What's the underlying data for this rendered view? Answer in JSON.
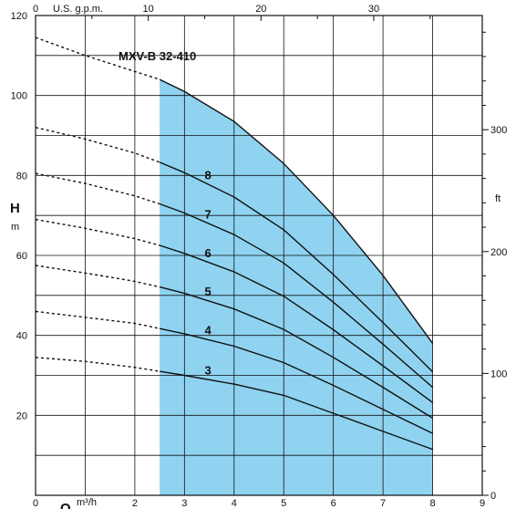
{
  "chart_data": {
    "type": "line",
    "title": "MXV-B 32-410",
    "x_primary": {
      "unit_label": "Q",
      "unit": "m³/h",
      "ticks": [
        "0",
        "1",
        "2",
        "3",
        "4",
        "5",
        "6",
        "7",
        "8",
        "9"
      ],
      "range": [
        0,
        9
      ]
    },
    "x_secondary": {
      "unit_label": "U.S. g.p.m.",
      "ticks": [
        "0",
        "10",
        "20",
        "30"
      ]
    },
    "y_primary": {
      "unit_label": "H",
      "unit": "m",
      "ticks": [
        "0",
        "20",
        "40",
        "60",
        "80",
        "100",
        "120"
      ],
      "range": [
        0,
        120
      ]
    },
    "y_secondary": {
      "unit_label": "ft",
      "ticks": [
        "0",
        "100",
        "200",
        "300"
      ]
    },
    "grid": true,
    "operating_range_x": [
      2.5,
      8
    ],
    "operating_area_color": "#8fd3f1",
    "series": [
      {
        "name": "3",
        "points": [
          [
            0,
            34.5
          ],
          [
            1,
            33.5
          ],
          [
            2,
            32
          ],
          [
            2.5,
            31
          ],
          [
            3,
            30
          ],
          [
            4,
            27.8
          ],
          [
            5,
            25
          ],
          [
            6,
            20.5
          ],
          [
            7,
            16
          ],
          [
            8,
            11.5
          ]
        ]
      },
      {
        "name": "4",
        "points": [
          [
            0,
            46
          ],
          [
            1,
            44.5
          ],
          [
            2,
            43
          ],
          [
            2.5,
            41.7
          ],
          [
            3,
            40.4
          ],
          [
            4,
            37.3
          ],
          [
            5,
            33.2
          ],
          [
            6,
            27.5
          ],
          [
            7,
            21.5
          ],
          [
            8,
            15.5
          ]
        ]
      },
      {
        "name": "5",
        "points": [
          [
            0,
            57.5
          ],
          [
            1,
            55.6
          ],
          [
            2,
            53.5
          ],
          [
            2.5,
            52.1
          ],
          [
            3,
            50.5
          ],
          [
            4,
            46.6
          ],
          [
            5,
            41.5
          ],
          [
            6,
            34.5
          ],
          [
            7,
            27
          ],
          [
            8,
            19.3
          ]
        ]
      },
      {
        "name": "6",
        "points": [
          [
            0,
            69
          ],
          [
            1,
            66.8
          ],
          [
            2,
            64.2
          ],
          [
            2.5,
            62.5
          ],
          [
            3,
            60.5
          ],
          [
            4,
            55.9
          ],
          [
            5,
            49.8
          ],
          [
            6,
            41.4
          ],
          [
            7,
            32.4
          ],
          [
            8,
            23.2
          ]
        ]
      },
      {
        "name": "7",
        "points": [
          [
            0,
            80.5
          ],
          [
            1,
            78
          ],
          [
            2,
            74.9
          ],
          [
            2.5,
            72.9
          ],
          [
            3,
            70.6
          ],
          [
            4,
            65.2
          ],
          [
            5,
            58.1
          ],
          [
            6,
            48.3
          ],
          [
            7,
            37.8
          ],
          [
            8,
            27
          ]
        ]
      },
      {
        "name": "8",
        "points": [
          [
            0,
            92
          ],
          [
            1,
            89.1
          ],
          [
            2,
            85.6
          ],
          [
            2.5,
            83.3
          ],
          [
            3,
            80.7
          ],
          [
            4,
            74.6
          ],
          [
            5,
            66.4
          ],
          [
            6,
            55.2
          ],
          [
            7,
            43.2
          ],
          [
            8,
            30.9
          ]
        ]
      },
      {
        "name": "envelope",
        "points": [
          [
            0,
            114.5
          ],
          [
            1,
            110
          ],
          [
            2,
            106
          ],
          [
            2.5,
            104
          ],
          [
            3,
            101
          ],
          [
            4,
            93.5
          ],
          [
            5,
            83
          ],
          [
            6,
            70
          ],
          [
            7,
            55
          ],
          [
            8,
            38
          ]
        ]
      }
    ]
  }
}
